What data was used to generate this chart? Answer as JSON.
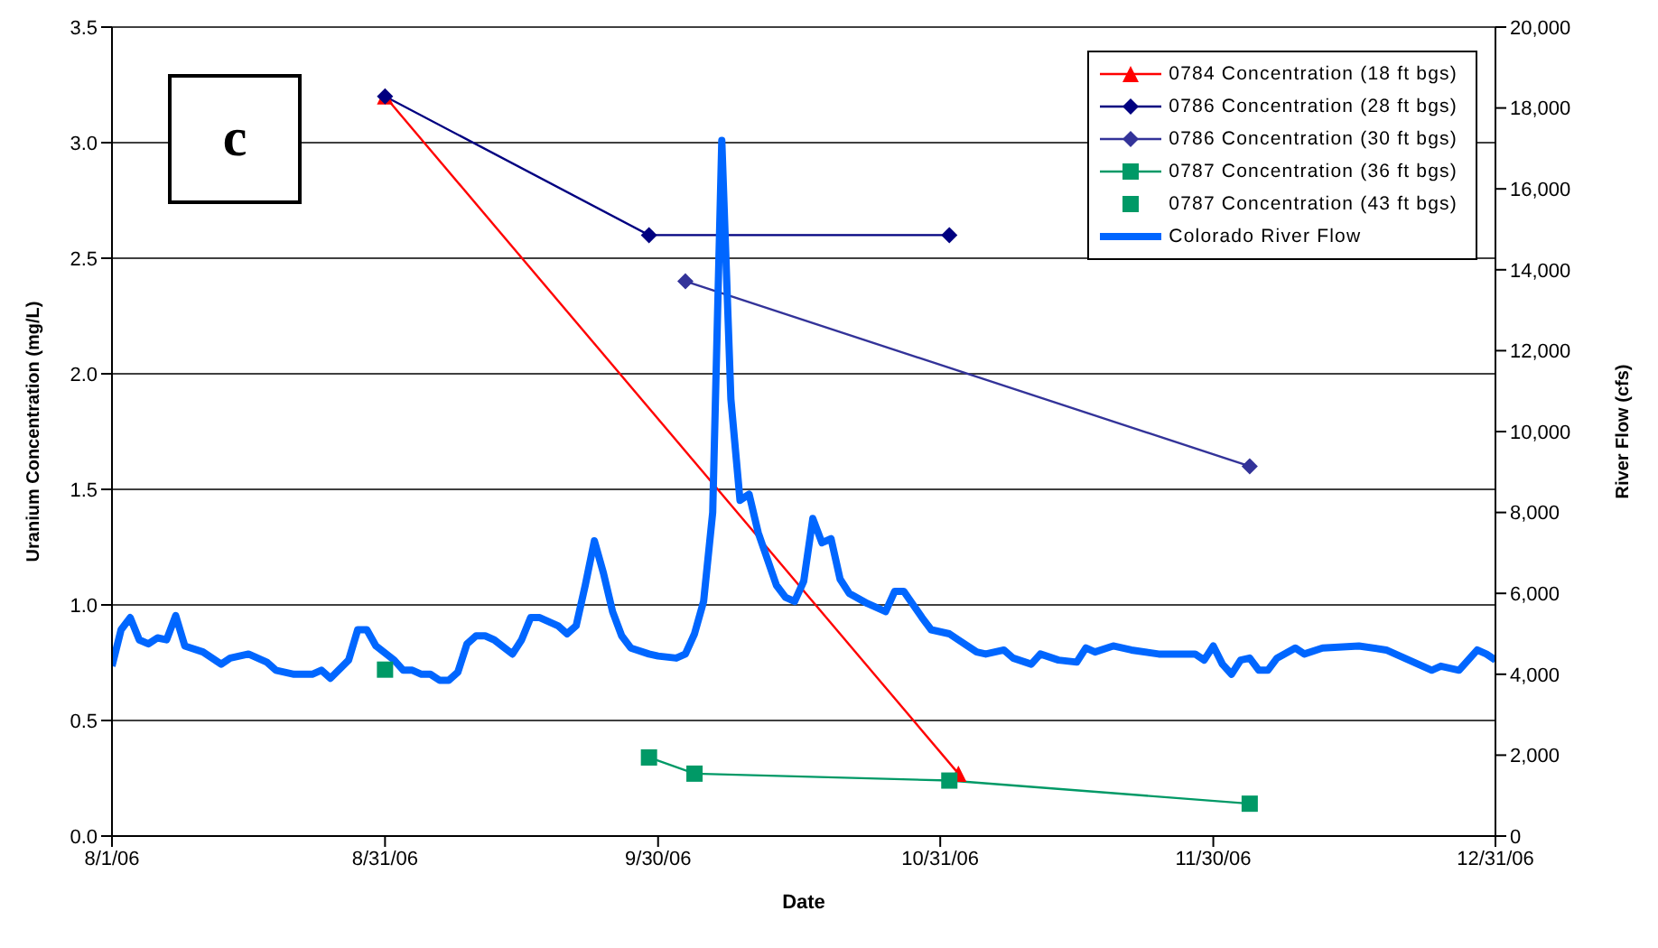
{
  "chart_data": {
    "type": "line",
    "xlabel": "Date",
    "ylabel": "Uranium Concentration (mg/L)",
    "y2label": "River Flow (cfs)",
    "annotations": [
      "c"
    ],
    "xlim": [
      "2006-08-01",
      "2006-12-31"
    ],
    "xticks": [
      {
        "value": "2006-08-01",
        "label": "8/1/06"
      },
      {
        "value": "2006-08-31",
        "label": "8/31/06"
      },
      {
        "value": "2006-09-30",
        "label": "9/30/06"
      },
      {
        "value": "2006-10-31",
        "label": "10/31/06"
      },
      {
        "value": "2006-11-30",
        "label": "11/30/06"
      },
      {
        "value": "2006-12-31",
        "label": "12/31/06"
      }
    ],
    "ylim": [
      0,
      3.5
    ],
    "yticks": [
      {
        "value": 0,
        "label": "0.0"
      },
      {
        "value": 0.5,
        "label": "0.5"
      },
      {
        "value": 1,
        "label": "1.0"
      },
      {
        "value": 1.5,
        "label": "1.5"
      },
      {
        "value": 2,
        "label": "2.0"
      },
      {
        "value": 2.5,
        "label": "2.5"
      },
      {
        "value": 3,
        "label": "3.0"
      },
      {
        "value": 3.5,
        "label": "3.5"
      }
    ],
    "y2lim": [
      0,
      20000
    ],
    "y2ticks": [
      0,
      {
        "value": 2000,
        "label": "2,000"
      },
      {
        "value": 4000,
        "label": "4,000"
      },
      {
        "value": 6000,
        "label": "6,000"
      },
      {
        "value": 8000,
        "label": "8,000"
      },
      {
        "value": 10000,
        "label": "10,000"
      },
      {
        "value": 12000,
        "label": "12,000"
      },
      {
        "value": 14000,
        "label": "14,000"
      },
      {
        "value": 16000,
        "label": "16,000"
      },
      {
        "value": 18000,
        "label": "18,000"
      },
      {
        "value": 20000,
        "label": "20,000"
      }
    ],
    "grid": "y",
    "legend": "top right",
    "series": [
      {
        "name": "0784 Concentration (18 ft bgs)",
        "type": "line",
        "color": "#ff0000",
        "marker": "triangle",
        "x": [
          "2006-08-31",
          "2006-11-02"
        ],
        "values": [
          3.2,
          0.27
        ]
      },
      {
        "name": "0786 Concentration (28 ft bgs)",
        "type": "line",
        "color": "#000080",
        "marker": "diamond",
        "x": [
          "2006-08-31",
          "2006-09-29",
          "2006-11-01"
        ],
        "values": [
          3.2,
          2.6,
          2.6
        ]
      },
      {
        "name": "0786 Concentration (30 ft bgs)",
        "type": "line",
        "color": "#333399",
        "marker": "diamond",
        "x": [
          "2006-10-03",
          "2006-12-04"
        ],
        "values": [
          2.4,
          1.6
        ]
      },
      {
        "name": "0787 Concentration (36 ft bgs)",
        "type": "line",
        "color": "#009966",
        "marker": "square",
        "x": [
          "2006-09-29",
          "2006-10-04",
          "2006-11-01",
          "2006-12-04"
        ],
        "values": [
          0.34,
          0.27,
          0.24,
          0.14
        ]
      },
      {
        "name": "0787 Concentration (43 ft bgs)",
        "type": "scatter",
        "color": "#009966",
        "marker": "square",
        "x": [
          "2006-08-31"
        ],
        "values": [
          0.72
        ]
      },
      {
        "name": "Colorado River Flow",
        "type": "line",
        "color": "#0066ff",
        "marker": "none",
        "axis": "y2",
        "x": [
          "2006-08-01",
          "2006-08-02",
          "2006-08-03",
          "2006-08-04",
          "2006-08-05",
          "2006-08-06",
          "2006-08-07",
          "2006-08-08",
          "2006-08-09",
          "2006-08-11",
          "2006-08-13",
          "2006-08-14",
          "2006-08-16",
          "2006-08-18",
          "2006-08-19",
          "2006-08-21",
          "2006-08-23",
          "2006-08-24",
          "2006-08-25",
          "2006-08-27",
          "2006-08-28",
          "2006-08-29",
          "2006-08-30",
          "2006-09-01",
          "2006-09-02",
          "2006-09-03",
          "2006-09-04",
          "2006-09-05",
          "2006-09-06",
          "2006-09-07",
          "2006-09-08",
          "2006-09-09",
          "2006-09-10",
          "2006-09-11",
          "2006-09-12",
          "2006-09-14",
          "2006-09-15",
          "2006-09-16",
          "2006-09-17",
          "2006-09-19",
          "2006-09-20",
          "2006-09-21",
          "2006-09-22",
          "2006-09-23",
          "2006-09-24",
          "2006-09-25",
          "2006-09-26",
          "2006-09-27",
          "2006-09-29",
          "2006-09-30",
          "2006-10-02",
          "2006-10-03",
          "2006-10-04",
          "2006-10-05",
          "2006-10-06",
          "2006-10-07",
          "2006-10-08",
          "2006-10-09",
          "2006-10-10",
          "2006-10-11",
          "2006-10-13",
          "2006-10-14",
          "2006-10-15",
          "2006-10-16",
          "2006-10-17",
          "2006-10-18",
          "2006-10-19",
          "2006-10-20",
          "2006-10-21",
          "2006-10-23",
          "2006-10-25",
          "2006-10-26",
          "2006-10-27",
          "2006-10-29",
          "2006-10-30",
          "2006-11-01",
          "2006-11-02",
          "2006-11-04",
          "2006-11-05",
          "2006-11-07",
          "2006-11-08",
          "2006-11-10",
          "2006-11-11",
          "2006-11-13",
          "2006-11-15",
          "2006-11-16",
          "2006-11-17",
          "2006-11-19",
          "2006-11-21",
          "2006-11-24",
          "2006-11-26",
          "2006-11-28",
          "2006-11-29",
          "2006-11-30",
          "2006-12-01",
          "2006-12-02",
          "2006-12-03",
          "2006-12-04",
          "2006-12-05",
          "2006-12-06",
          "2006-12-07",
          "2006-12-09",
          "2006-12-10",
          "2006-12-12",
          "2006-12-16",
          "2006-12-19",
          "2006-12-21",
          "2006-12-24",
          "2006-12-25",
          "2006-12-27",
          "2006-12-29",
          "2006-12-30",
          "2006-12-31"
        ],
        "values": [
          4200,
          5100,
          5400,
          4850,
          4750,
          4900,
          4850,
          5450,
          4700,
          4550,
          4250,
          4400,
          4500,
          4300,
          4100,
          4000,
          4000,
          4100,
          3900,
          4350,
          5100,
          5100,
          4700,
          4350,
          4100,
          4100,
          4000,
          4000,
          3850,
          3850,
          4050,
          4750,
          4950,
          4950,
          4850,
          4500,
          4850,
          5400,
          5400,
          5200,
          5000,
          5200,
          6200,
          7300,
          6500,
          5550,
          4950,
          4650,
          4500,
          4450,
          4400,
          4500,
          5000,
          5800,
          8000,
          17200,
          10800,
          8300,
          8450,
          7500,
          6200,
          5900,
          5800,
          6300,
          7850,
          7250,
          7350,
          6350,
          6000,
          5750,
          5550,
          6050,
          6050,
          5400,
          5100,
          5000,
          4850,
          4550,
          4500,
          4600,
          4400,
          4250,
          4500,
          4350,
          4300,
          4650,
          4550,
          4700,
          4600,
          4500,
          4500,
          4500,
          4350,
          4700,
          4250,
          4000,
          4350,
          4400,
          4100,
          4100,
          4400,
          4650,
          4500,
          4650,
          4700,
          4600,
          4400,
          4100,
          4200,
          4100,
          4600,
          4500,
          4350
        ]
      }
    ]
  }
}
